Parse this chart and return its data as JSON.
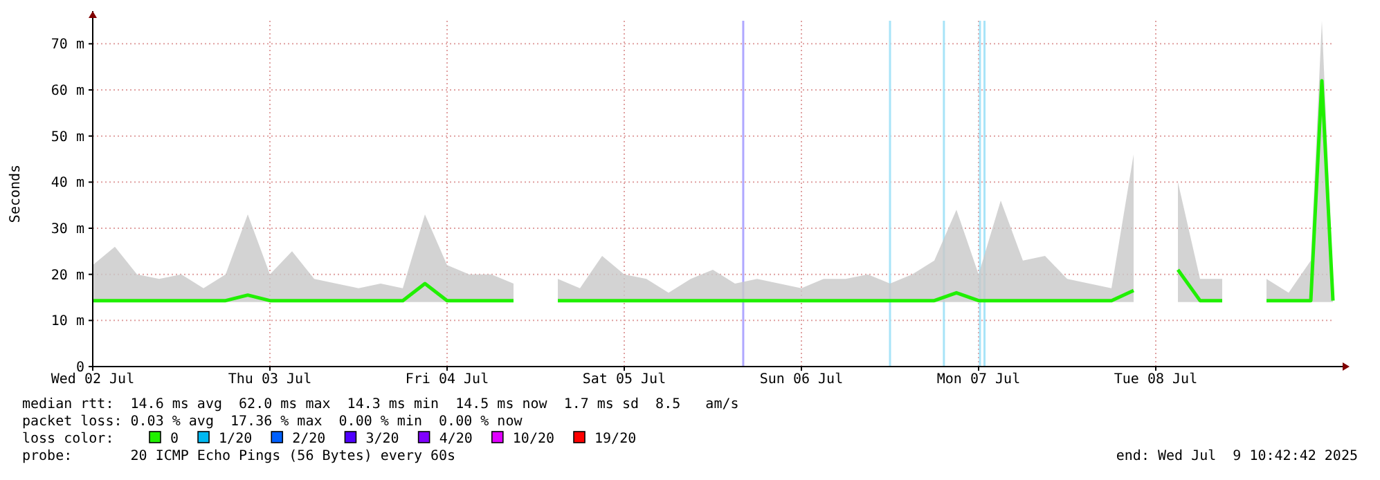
{
  "chart_data": {
    "type": "line",
    "ylabel": "Seconds",
    "ylim": [
      0,
      75
    ],
    "yticks": [
      0,
      {
        "value": 10,
        "label": "10 m"
      },
      {
        "value": 20,
        "label": "20 m"
      },
      {
        "value": 30,
        "label": "30 m"
      },
      {
        "value": 40,
        "label": "40 m"
      },
      {
        "value": 50,
        "label": "50 m"
      },
      {
        "value": 60,
        "label": "60 m"
      },
      {
        "value": 70,
        "label": "70 m"
      }
    ],
    "xlim": [
      "2025-07-02T10:42",
      "2025-07-09T10:42"
    ],
    "xticks": [
      {
        "value": "2025-07-02T10:42",
        "label": "Wed 02 Jul"
      },
      {
        "value": "2025-07-03T10:42",
        "label": "Thu 03 Jul"
      },
      {
        "value": "2025-07-04T10:42",
        "label": "Fri 04 Jul"
      },
      {
        "value": "2025-07-05T10:42",
        "label": "Sat 05 Jul"
      },
      {
        "value": "2025-07-06T10:42",
        "label": "Sun 06 Jul"
      },
      {
        "value": "2025-07-07T10:42",
        "label": "Mon 07 Jul"
      },
      {
        "value": "2025-07-08T10:42",
        "label": "Tue 08 Jul"
      }
    ],
    "x": [
      "2025-07-02T10:42",
      "2025-07-02T13:42",
      "2025-07-02T16:42",
      "2025-07-02T19:42",
      "2025-07-02T22:42",
      "2025-07-03T01:42",
      "2025-07-03T04:42",
      "2025-07-03T07:42",
      "2025-07-03T10:42",
      "2025-07-03T13:42",
      "2025-07-03T16:42",
      "2025-07-03T19:42",
      "2025-07-03T22:42",
      "2025-07-04T01:42",
      "2025-07-04T04:42",
      "2025-07-04T07:42",
      "2025-07-04T10:42",
      "2025-07-04T13:42",
      "2025-07-04T16:42",
      "2025-07-04T19:42",
      "2025-07-04T22:42",
      "2025-07-05T01:42",
      "2025-07-05T04:42",
      "2025-07-05T07:42",
      "2025-07-05T10:42",
      "2025-07-05T13:42",
      "2025-07-05T16:42",
      "2025-07-05T19:42",
      "2025-07-05T22:42",
      "2025-07-06T01:42",
      "2025-07-06T04:42",
      "2025-07-06T07:42",
      "2025-07-06T10:42",
      "2025-07-06T13:42",
      "2025-07-06T16:42",
      "2025-07-06T19:42",
      "2025-07-06T22:42",
      "2025-07-07T01:42",
      "2025-07-07T04:42",
      "2025-07-07T07:42",
      "2025-07-07T10:42",
      "2025-07-07T13:42",
      "2025-07-07T16:42",
      "2025-07-07T19:42",
      "2025-07-07T22:42",
      "2025-07-08T01:42",
      "2025-07-08T04:42",
      "2025-07-08T07:42",
      "2025-07-08T10:42",
      "2025-07-08T13:42",
      "2025-07-08T16:42",
      "2025-07-08T19:42",
      "2025-07-08T22:42",
      "2025-07-09T01:42",
      "2025-07-09T04:42",
      "2025-07-09T07:42",
      "2025-07-09T09:12",
      "2025-07-09T10:42"
    ],
    "series": [
      {
        "name": "0",
        "color": "#20f000",
        "values": [
          14.3,
          14.3,
          14.3,
          14.3,
          14.3,
          14.3,
          14.3,
          15.5,
          14.3,
          14.3,
          14.3,
          14.3,
          14.3,
          14.3,
          14.3,
          18,
          14.3,
          14.3,
          14.3,
          14.3,
          null,
          14.3,
          14.3,
          14.3,
          14.3,
          14.3,
          14.3,
          14.3,
          14.3,
          14.3,
          14.3,
          14.3,
          14.3,
          14.3,
          14.3,
          14.3,
          14.3,
          14.3,
          14.3,
          16,
          14.3,
          14.3,
          14.3,
          14.3,
          14.3,
          14.3,
          14.3,
          16.5,
          null,
          21,
          14.3,
          14.3,
          null,
          14.3,
          14.3,
          14.3,
          62,
          14.3
        ],
        "lower": [
          14,
          14,
          14,
          14,
          14,
          14,
          14,
          14,
          14,
          14,
          14,
          14,
          14,
          14,
          14,
          14,
          14,
          14,
          14,
          14,
          null,
          14,
          14,
          14,
          14,
          14,
          14,
          14,
          14,
          14,
          14,
          14,
          14,
          14,
          14,
          14,
          14,
          14,
          14,
          14,
          14,
          14,
          14,
          14,
          14,
          14,
          14,
          14,
          null,
          14,
          14,
          14,
          null,
          14,
          14,
          14,
          14,
          14
        ],
        "upper": [
          22,
          26,
          20,
          19,
          20,
          17,
          20,
          33,
          20,
          25,
          19,
          18,
          17,
          18,
          17,
          33,
          22,
          20,
          20,
          18,
          null,
          19,
          17,
          24,
          20,
          19,
          16,
          19,
          21,
          18,
          19,
          18,
          17,
          19,
          19,
          20,
          18,
          20,
          23,
          34,
          20,
          36,
          23,
          24,
          19,
          18,
          17,
          46,
          null,
          40,
          19,
          19,
          null,
          19,
          16,
          23,
          75,
          19
        ]
      },
      {
        "name": "1/20",
        "color": "#00b8f0",
        "values": [
          null,
          null,
          null,
          null,
          null,
          null,
          null,
          null,
          null,
          null,
          null,
          null,
          null,
          null,
          null,
          null,
          null,
          null,
          null,
          null,
          null,
          null,
          null,
          null,
          null,
          null,
          null,
          null,
          null,
          null,
          null,
          null,
          null,
          null,
          null,
          null,
          null,
          null,
          null,
          null,
          null,
          null,
          null,
          null,
          null,
          null,
          null,
          null,
          null,
          null,
          null,
          null,
          null,
          null,
          null,
          null,
          null,
          null
        ]
      },
      {
        "name": "2/20",
        "color": "#0060ff",
        "values": [
          null,
          null,
          null,
          null,
          null,
          null,
          null,
          null,
          null,
          null,
          null,
          null,
          null,
          null,
          null,
          null,
          null,
          null,
          null,
          null,
          null,
          null,
          null,
          null,
          null,
          null,
          null,
          null,
          null,
          null,
          null,
          null,
          null,
          null,
          null,
          null,
          null,
          null,
          null,
          null,
          null,
          null,
          null,
          null,
          null,
          null,
          null,
          null,
          null,
          null,
          null,
          null,
          null,
          null,
          null,
          null,
          null,
          null
        ]
      },
      {
        "name": "3/20",
        "color": "#5000ff",
        "values": [
          null,
          null,
          null,
          null,
          null,
          null,
          null,
          null,
          null,
          null,
          null,
          null,
          null,
          null,
          null,
          null,
          null,
          null,
          null,
          null,
          null,
          null,
          null,
          null,
          null,
          null,
          null,
          null,
          null,
          null,
          null,
          null,
          null,
          null,
          null,
          null,
          null,
          null,
          null,
          null,
          null,
          null,
          null,
          null,
          null,
          null,
          null,
          null,
          null,
          null,
          null,
          null,
          null,
          null,
          null,
          null,
          null,
          null
        ]
      },
      {
        "name": "4/20",
        "color": "#8000ff",
        "values": [
          null,
          null,
          null,
          null,
          null,
          null,
          null,
          null,
          null,
          null,
          null,
          null,
          null,
          null,
          null,
          null,
          null,
          null,
          null,
          null,
          null,
          null,
          null,
          null,
          null,
          null,
          null,
          null,
          null,
          null,
          null,
          null,
          null,
          null,
          null,
          null,
          null,
          null,
          null,
          null,
          null,
          null,
          null,
          null,
          null,
          null,
          null,
          null,
          null,
          null,
          null,
          null,
          null,
          null,
          null,
          null,
          null,
          null
        ]
      },
      {
        "name": "10/20",
        "color": "#e000ff",
        "values": [
          null,
          null,
          null,
          null,
          null,
          null,
          null,
          null,
          null,
          null,
          null,
          null,
          null,
          null,
          null,
          null,
          null,
          null,
          null,
          null,
          null,
          null,
          null,
          null,
          null,
          null,
          null,
          null,
          null,
          null,
          null,
          null,
          null,
          null,
          null,
          null,
          null,
          null,
          null,
          null,
          null,
          null,
          null,
          null,
          null,
          null,
          null,
          null,
          null,
          null,
          null,
          null,
          null,
          null,
          null,
          null,
          null,
          null
        ]
      },
      {
        "name": "19/20",
        "color": "#ff0000",
        "values": [
          null,
          null,
          null,
          null,
          null,
          null,
          null,
          null,
          null,
          null,
          null,
          null,
          null,
          null,
          null,
          null,
          null,
          null,
          null,
          null,
          null,
          null,
          null,
          null,
          null,
          null,
          null,
          null,
          null,
          null,
          null,
          null,
          null,
          null,
          null,
          null,
          null,
          null,
          null,
          null,
          null,
          null,
          null,
          null,
          null,
          null,
          null,
          null,
          null,
          null,
          null,
          null,
          null,
          null,
          null,
          null,
          null,
          null
        ]
      }
    ],
    "ref_lines": [
      {
        "axis": "x",
        "value": "2025-07-06T02:49",
        "color": "#b0a8ff"
      },
      {
        "axis": "x",
        "value": "2025-07-06T22:42",
        "color": "#a8e4f8"
      },
      {
        "axis": "x",
        "value": "2025-07-07T06:00",
        "color": "#a8e4f8"
      },
      {
        "axis": "x",
        "value": "2025-07-07T10:53",
        "color": "#a8e4f8"
      },
      {
        "axis": "x",
        "value": "2025-07-07T11:30",
        "color": "#a8e4f8"
      }
    ],
    "grid": true,
    "legend": "bottom",
    "legend_title": "loss color:",
    "annotations": [
      "median rtt:  14.6 ms avg  62.0 ms max  14.3 ms min  14.5 ms now  1.7 ms sd  8.5   am/s",
      "packet loss: 0.03 % avg  17.36 % max  0.00 % min  0.00 % now",
      "probe:       20 ICMP Echo Pings (56 Bytes) every 60s",
      "end: Wed Jul  9 10:42:42 2025"
    ]
  }
}
